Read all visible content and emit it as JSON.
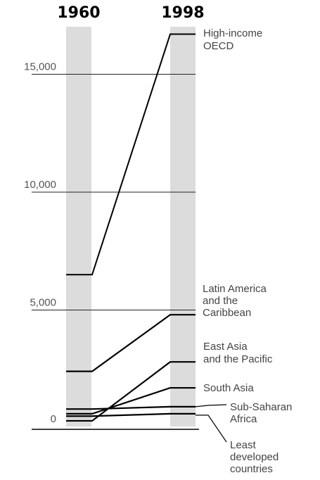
{
  "chart_data": {
    "type": "line",
    "title": "",
    "xlabel": "",
    "ylabel": "",
    "x": [
      "1960",
      "1998"
    ],
    "ylim": [
      0,
      16500
    ],
    "yticks": [
      0,
      5000,
      10000,
      15000
    ],
    "ytick_labels": [
      "0",
      "5,000",
      "10,000",
      "15,000"
    ],
    "grid": true,
    "series": [
      {
        "name": "High-income OECD",
        "label_lines": [
          "High-income",
          "OECD"
        ],
        "values": [
          6500,
          16700
        ]
      },
      {
        "name": "Latin America and the Caribbean",
        "label_lines": [
          "Latin America",
          "and the",
          "Caribbean"
        ],
        "values": [
          2400,
          4800
        ]
      },
      {
        "name": "East Asia and the Pacific",
        "label_lines": [
          "East  Asia",
          "and the Pacific"
        ],
        "values": [
          300,
          2800
        ]
      },
      {
        "name": "South Asia",
        "label_lines": [
          "South Asia"
        ],
        "values": [
          600,
          1700
        ]
      },
      {
        "name": "Sub-Saharan Africa",
        "label_lines": [
          "Sub-Saharan",
          "Africa"
        ],
        "values": [
          800,
          900
        ]
      },
      {
        "name": "Least developed countries",
        "label_lines": [
          "Least",
          "developed",
          "countries"
        ],
        "values": [
          500,
          600
        ]
      }
    ]
  }
}
